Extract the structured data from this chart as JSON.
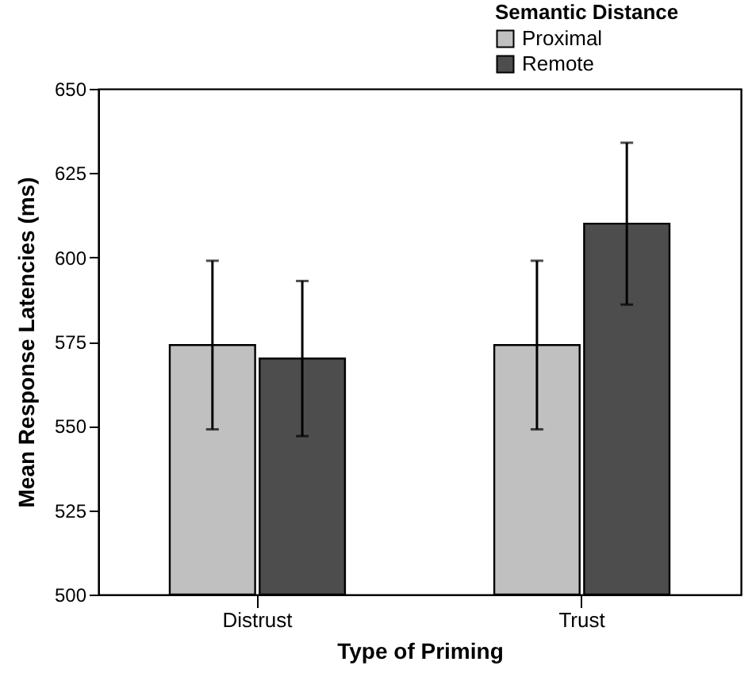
{
  "chart_data": {
    "type": "bar",
    "xlabel": "Type of Priming",
    "ylabel": "Mean Response Latencies (ms)",
    "legend_title": "Semantic Distance",
    "categories": [
      "Distrust",
      "Trust"
    ],
    "series": [
      {
        "name": "Proximal",
        "color": "#c0c0c0",
        "values": [
          574,
          574
        ],
        "errors": [
          [
            549,
            599
          ],
          [
            549,
            599
          ]
        ]
      },
      {
        "name": "Remote",
        "color": "#4d4d4d",
        "values": [
          570,
          610
        ],
        "errors": [
          [
            547,
            593
          ],
          [
            586,
            634
          ]
        ]
      }
    ],
    "ylim": [
      500,
      650
    ],
    "yticks": [
      500,
      525,
      550,
      575,
      600,
      625,
      650
    ],
    "grid": false,
    "legend": "top right"
  }
}
